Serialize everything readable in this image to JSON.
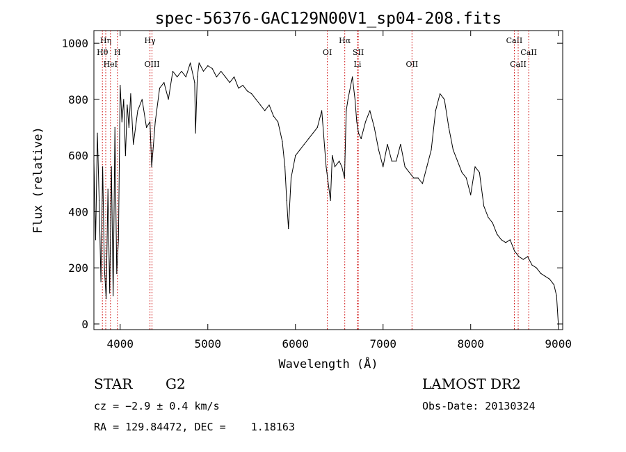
{
  "chart_data": {
    "type": "line",
    "title": "spec-56376-GAC129N00V1_sp04-208.fits",
    "xlabel": "Wavelength (Å)",
    "ylabel": "Flux (relative)",
    "xlim": [
      3700,
      9050
    ],
    "ylim": [
      -20,
      1045
    ],
    "xticks": [
      4000,
      5000,
      6000,
      7000,
      8000,
      9000
    ],
    "yticks": [
      0,
      200,
      400,
      600,
      800,
      1000
    ],
    "grid": false,
    "line_color": "#000000",
    "marker_color": "#cc0000",
    "series": [
      {
        "x": [
          3700,
          3720,
          3740,
          3760,
          3780,
          3800,
          3820,
          3840,
          3860,
          3880,
          3900,
          3920,
          3940,
          3960,
          3980,
          4000,
          4020,
          4040,
          4060,
          4080,
          4100,
          4120,
          4150,
          4200,
          4250,
          4300,
          4340,
          4360,
          4400,
          4450,
          4500,
          4550,
          4600,
          4650,
          4700,
          4750,
          4800,
          4850,
          4860,
          4880,
          4900,
          4950,
          5000,
          5050,
          5100,
          5150,
          5200,
          5250,
          5300,
          5350,
          5400,
          5450,
          5500,
          5550,
          5600,
          5650,
          5700,
          5750,
          5800,
          5850,
          5880,
          5900,
          5920,
          5950,
          6000,
          6050,
          6100,
          6150,
          6200,
          6250,
          6300,
          6350,
          6400,
          6420,
          6450,
          6500,
          6530,
          6560,
          6580,
          6600,
          6650,
          6680,
          6700,
          6720,
          6750,
          6800,
          6850,
          6900,
          6950,
          7000,
          7050,
          7100,
          7150,
          7200,
          7250,
          7300,
          7350,
          7400,
          7450,
          7500,
          7550,
          7600,
          7650,
          7700,
          7750,
          7800,
          7850,
          7900,
          7950,
          8000,
          8050,
          8100,
          8150,
          8200,
          8250,
          8300,
          8350,
          8400,
          8450,
          8500,
          8550,
          8600,
          8650,
          8700,
          8750,
          8800,
          8850,
          8900,
          8950,
          8980,
          9000
        ],
        "y": [
          580,
          300,
          680,
          440,
          150,
          560,
          200,
          90,
          480,
          110,
          560,
          100,
          700,
          180,
          300,
          850,
          720,
          800,
          600,
          780,
          700,
          820,
          640,
          760,
          800,
          700,
          720,
          560,
          720,
          840,
          860,
          800,
          900,
          880,
          900,
          880,
          930,
          860,
          680,
          880,
          930,
          900,
          920,
          910,
          880,
          900,
          880,
          860,
          880,
          840,
          850,
          830,
          820,
          800,
          780,
          760,
          780,
          740,
          720,
          650,
          560,
          440,
          340,
          520,
          600,
          620,
          640,
          660,
          680,
          700,
          760,
          560,
          440,
          600,
          560,
          580,
          560,
          520,
          760,
          800,
          880,
          800,
          720,
          680,
          660,
          720,
          760,
          700,
          620,
          560,
          640,
          580,
          580,
          640,
          560,
          540,
          520,
          520,
          500,
          560,
          620,
          760,
          820,
          800,
          700,
          620,
          580,
          540,
          520,
          460,
          560,
          540,
          420,
          380,
          360,
          320,
          300,
          290,
          300,
          260,
          240,
          230,
          240,
          210,
          200,
          180,
          170,
          160,
          140,
          100,
          0
        ]
      }
    ],
    "line_markers": [
      {
        "label": "Hη",
        "x": 3835,
        "row": 1
      },
      {
        "label": "Hθ",
        "x": 3797,
        "row": 2
      },
      {
        "label": "H",
        "x": 3968,
        "row": 2
      },
      {
        "label": "HeI",
        "x": 3889,
        "row": 3
      },
      {
        "label": "Hγ",
        "x": 4340,
        "row": 1
      },
      {
        "label": "OIII",
        "x": 4363,
        "row": 3
      },
      {
        "label": "Hα",
        "x": 6563,
        "row": 1
      },
      {
        "label": "OI",
        "x": 6364,
        "row": 2
      },
      {
        "label": "SII",
        "x": 6717,
        "row": 2
      },
      {
        "label": "Li",
        "x": 6708,
        "row": 3
      },
      {
        "label": "OII",
        "x": 7330,
        "row": 3
      },
      {
        "label": "CaII",
        "x": 8498,
        "row": 1
      },
      {
        "label": "CaII",
        "x": 8662,
        "row": 2
      },
      {
        "label": "CaII",
        "x": 8542,
        "row": 3
      }
    ]
  },
  "info": {
    "class": "STAR",
    "subclass": "G2",
    "survey": "LAMOST DR2",
    "cz": "cz = −2.9 ± 0.4 km/s",
    "obs_date": "Obs-Date: 20130324",
    "coords": "RA = 129.84472, DEC =    1.18163"
  }
}
